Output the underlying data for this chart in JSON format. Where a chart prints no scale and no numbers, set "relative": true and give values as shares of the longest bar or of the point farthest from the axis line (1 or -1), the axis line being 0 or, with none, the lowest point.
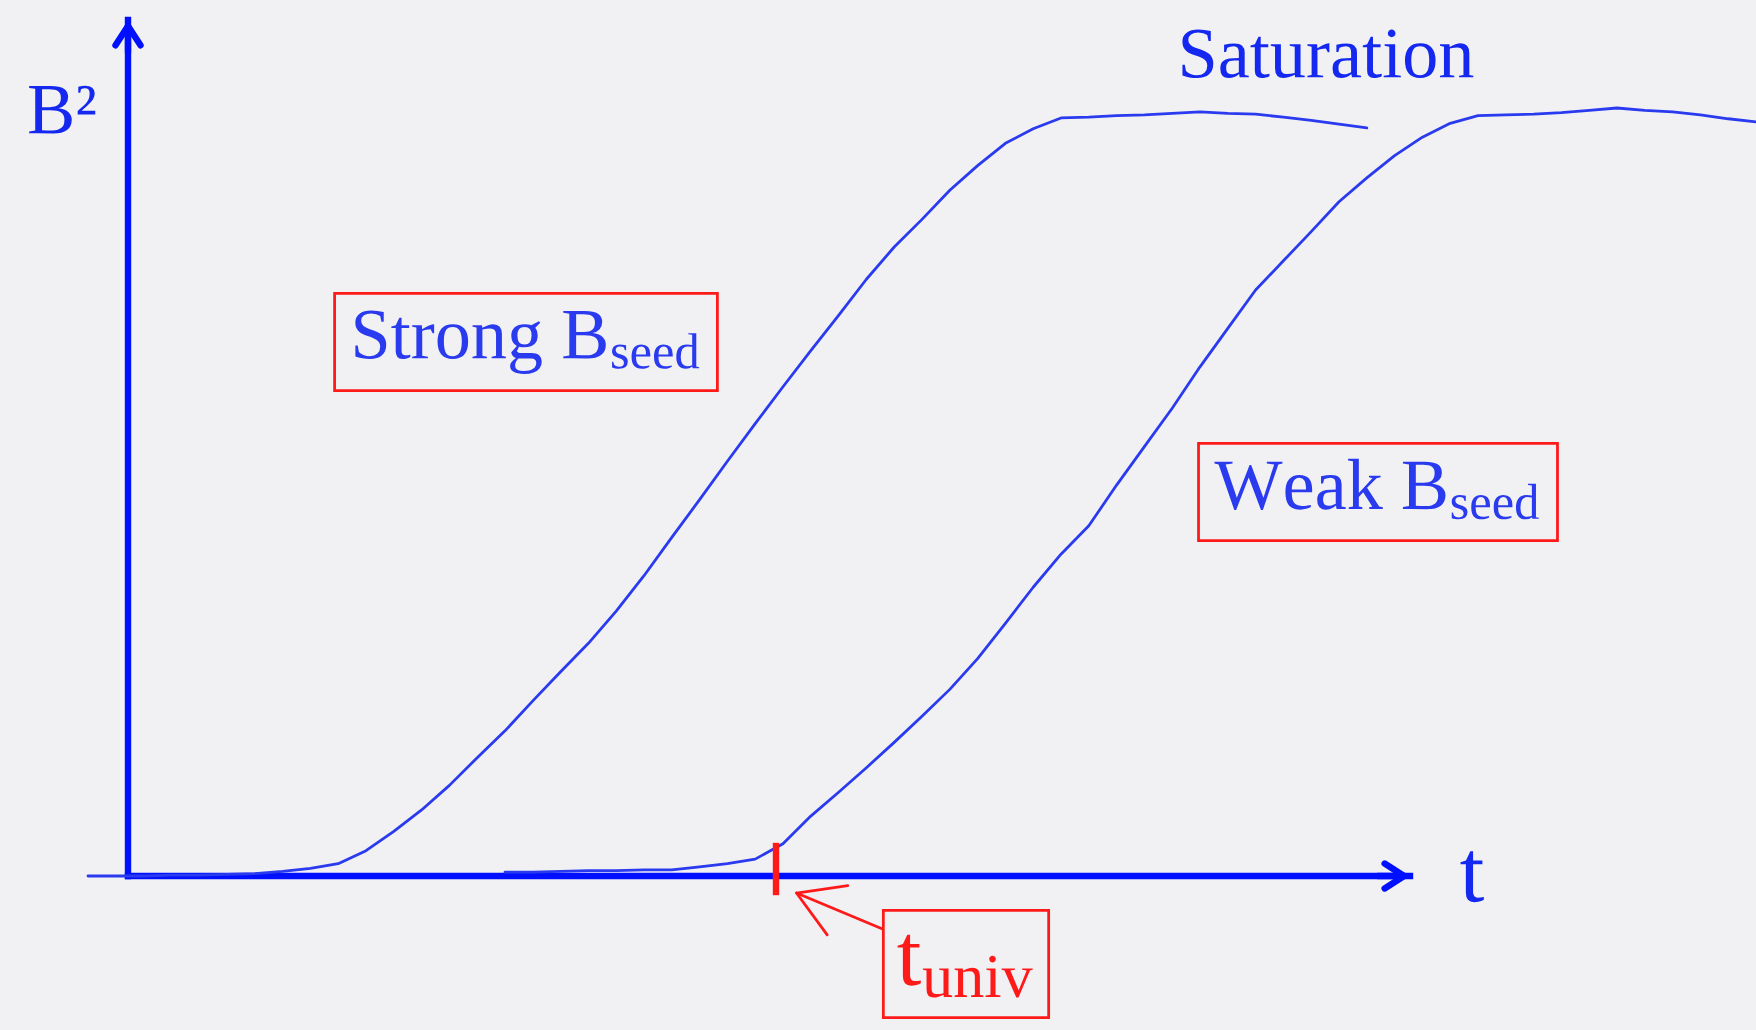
{
  "chart_data": {
    "type": "line",
    "relative": true,
    "xlabel": "t",
    "ylabel": "B²",
    "annotations": [
      "Saturation",
      "t$_{univ}$"
    ],
    "categories": [
      null,
      null,
      null,
      null,
      null,
      null,
      null,
      null,
      null,
      null,
      null,
      null,
      null,
      null,
      null,
      null,
      null,
      null,
      null,
      null,
      null,
      null,
      null,
      null,
      null,
      null,
      null,
      null,
      null,
      null,
      null,
      null,
      null,
      null,
      null,
      null,
      null,
      null,
      null,
      null,
      null,
      null,
      null,
      null,
      null,
      null,
      null,
      null,
      null,
      null,
      null,
      null,
      null,
      null,
      null,
      null,
      null,
      null,
      null,
      null,
      null
    ],
    "series": [
      {
        "name": "Strong B$_{seed}$",
        "color": "#2a3aee",
        "values": [
          0,
          0,
          0,
          0.001,
          0.001,
          0.002,
          0.003,
          0.006,
          0.01,
          0.016,
          0.033,
          0.058,
          0.086,
          0.118,
          0.154,
          0.189,
          0.228,
          0.266,
          0.303,
          0.345,
          0.391,
          0.441,
          0.49,
          0.54,
          0.589,
          0.637,
          0.684,
          0.73,
          0.777,
          0.819,
          0.855,
          0.893,
          0.925,
          0.954,
          0.973,
          0.987,
          0.988,
          0.99,
          0.991,
          0.993,
          0.995,
          0.993,
          0.992,
          0.988,
          0.984,
          0.979,
          0.974,
          null,
          null,
          null,
          null,
          null,
          null,
          null,
          null,
          null,
          null,
          null,
          null,
          null,
          null
        ]
      },
      {
        "name": "Weak B$_{seed}$",
        "color": "#2a3aee",
        "values": [
          null,
          null,
          null,
          null,
          null,
          null,
          null,
          null,
          null,
          null,
          null,
          null,
          null,
          null,
          null,
          0.005,
          0.005,
          0.006,
          0.007,
          0.007,
          0.008,
          0.008,
          0.012,
          0.016,
          0.022,
          0.042,
          0.078,
          0.109,
          0.141,
          0.174,
          0.208,
          0.243,
          0.283,
          0.329,
          0.376,
          0.419,
          0.456,
          0.509,
          0.559,
          0.609,
          0.663,
          0.713,
          0.763,
          0.801,
          0.839,
          0.878,
          0.909,
          0.938,
          0.962,
          0.98,
          0.99,
          0.991,
          0.992,
          0.994,
          0.997,
          1,
          0.997,
          0.995,
          0.991,
          0.986,
          0.982
        ]
      }
    ]
  }
}
